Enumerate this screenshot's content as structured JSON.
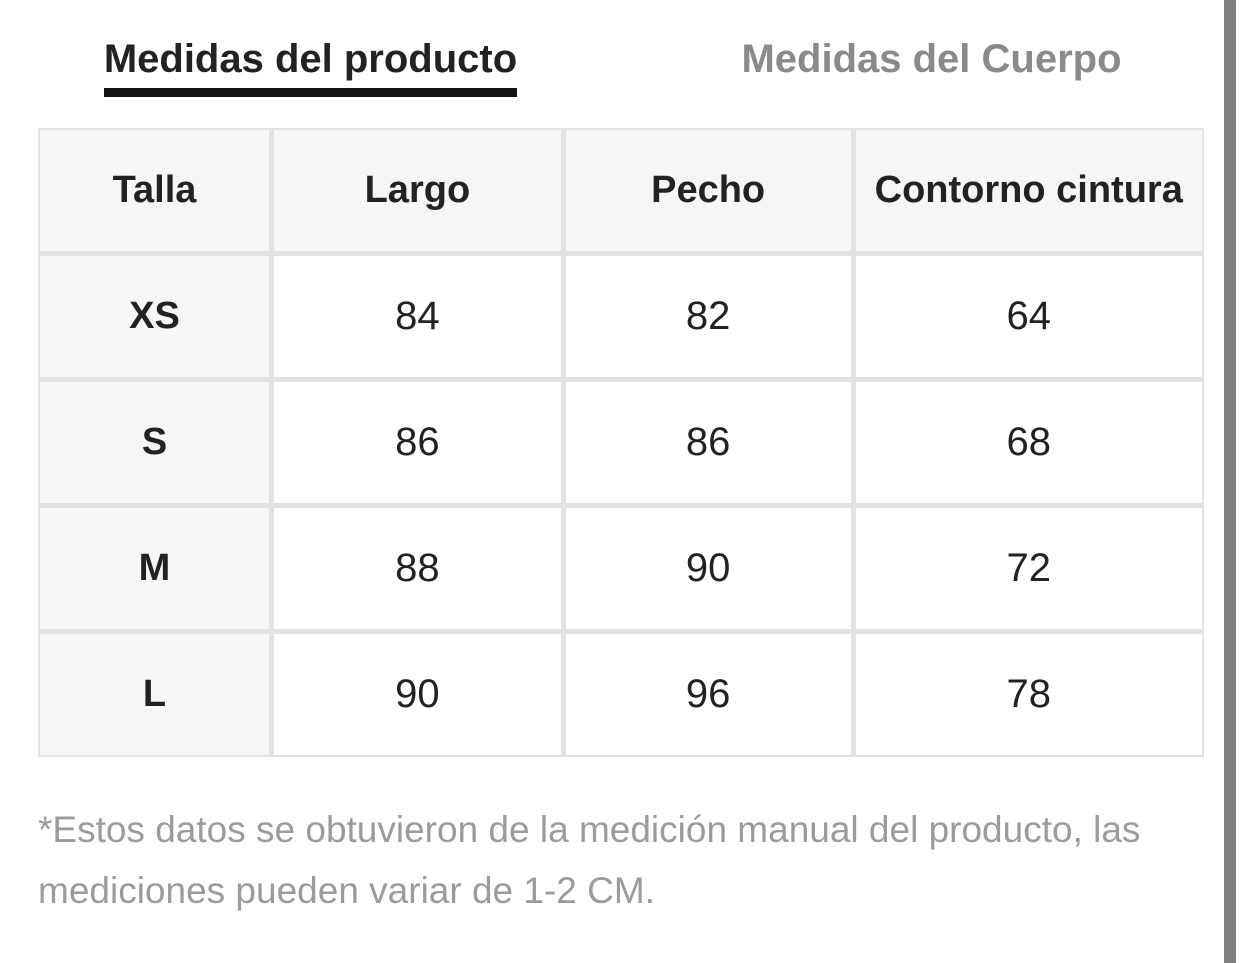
{
  "tabs": {
    "product": {
      "label": "Medidas del producto",
      "active": true
    },
    "body": {
      "label": "Medidas del Cuerpo",
      "active": false
    }
  },
  "table": {
    "headers": [
      "Talla",
      "Largo",
      "Pecho",
      "Contorno cintura"
    ],
    "rows": [
      {
        "size": "XS",
        "values": [
          "84",
          "82",
          "64"
        ]
      },
      {
        "size": "S",
        "values": [
          "86",
          "86",
          "68"
        ]
      },
      {
        "size": "M",
        "values": [
          "88",
          "90",
          "72"
        ]
      },
      {
        "size": "L",
        "values": [
          "90",
          "96",
          "78"
        ]
      }
    ],
    "unit_note": "CM"
  },
  "footnote": "*Estos datos se obtuvieron de la medición manual del producto, las mediciones pueden variar de 1-2 CM.",
  "colors": {
    "active_tab_text": "#222222",
    "active_tab_underline": "#111111",
    "inactive_tab_text": "#8a8a8a",
    "header_cell_bg": "#f6f6f6",
    "value_cell_bg": "#ffffff",
    "grid_line": "#e2e2e2",
    "footnote_text": "#9b9b9b",
    "scrollbar": "#7f7f7f"
  }
}
